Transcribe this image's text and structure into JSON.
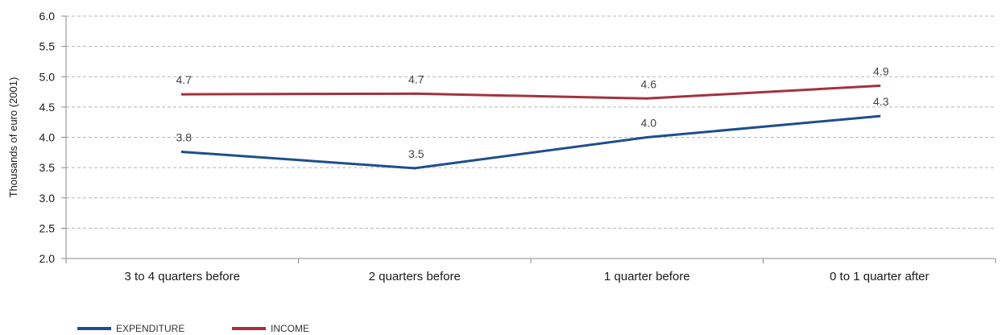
{
  "chart_data": {
    "type": "line",
    "title": "",
    "xlabel": "",
    "ylabel": "Thousands of euro (2001)",
    "categories": [
      "3 to 4 quarters before",
      "2 quarters before",
      "1 quarter before",
      "0 to 1 quarter after"
    ],
    "ylim": [
      2.0,
      6.0
    ],
    "yticks": [
      "2.0",
      "2.5",
      "3.0",
      "3.5",
      "4.0",
      "4.5",
      "5.0",
      "5.5",
      "6.0"
    ],
    "grid": true,
    "legend_position": "bottom-left",
    "series": [
      {
        "name": "EXPENDITURE",
        "color": "#1f4e8c",
        "values": [
          3.76,
          3.49,
          4.0,
          4.35
        ],
        "labels": [
          "3.8",
          "3.5",
          "4.0",
          "4.3"
        ]
      },
      {
        "name": "INCOME",
        "color": "#a3323f",
        "values": [
          4.71,
          4.72,
          4.64,
          4.85
        ],
        "labels": [
          "4.7",
          "4.7",
          "4.6",
          "4.9"
        ]
      }
    ]
  }
}
